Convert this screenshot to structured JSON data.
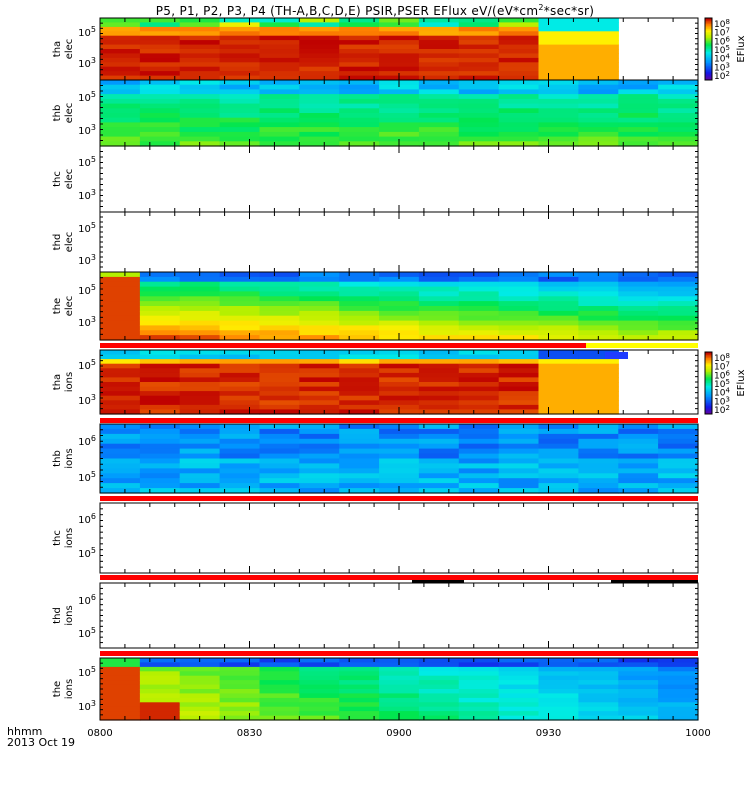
{
  "title": {
    "main": "P5, P1, P2, P3, P4 (TH-A,B,C,D,E) PSIR,PSER EFlux eV/(eV*cm",
    "sup": "2",
    "tail": "*sec*sr)"
  },
  "footer": {
    "time_label": "hhmm",
    "date_label": "2013 Oct 19"
  },
  "colors": {
    "background": "#ffffff",
    "flag_bar": "#ff0000",
    "flag_bar_alt": "#ffff00"
  },
  "chart_data": {
    "type": "heatmap",
    "x_axis": {
      "range": [
        "08:00",
        "10:00"
      ],
      "ticks": [
        "0800",
        "0830",
        "0900",
        "0930",
        "1000"
      ],
      "scale": "time (hhmm)"
    },
    "y_axis_scale": "log",
    "colorbars": [
      {
        "label": "EFlux",
        "panel": "tha_elec",
        "ticks": [
          "10^8",
          "10^7",
          "10^6",
          "10^5",
          "10^4",
          "10^3",
          "10^2"
        ],
        "scale": "log"
      },
      {
        "label": "EFlux",
        "panel": "tha_ions",
        "ticks": [
          "10^8",
          "10^7",
          "10^6",
          "10^5",
          "10^4",
          "10^3",
          "10^2"
        ],
        "scale": "log"
      }
    ],
    "panels": [
      {
        "id": "tha_elec",
        "ylabel": [
          "tha",
          "elec"
        ],
        "yticks": [
          "10^5",
          "10^3"
        ],
        "data_extent": [
          "08:00",
          "09:45"
        ],
        "description": "mostly saturated red (~10^8) below 10^4 eV, orange/yellow band at top, drop to yellow/cyan after 09:25"
      },
      {
        "id": "thb_elec",
        "ylabel": [
          "thb",
          "elec"
        ],
        "yticks": [
          "10^5",
          "10^3"
        ],
        "data_extent": [
          "08:00",
          "10:00"
        ],
        "description": "blue to green (~10^4 - 10^5) throughout"
      },
      {
        "id": "thc_elec",
        "ylabel": [
          "thc",
          "elec"
        ],
        "yticks": [
          "10^5",
          "10^3"
        ],
        "data_extent": null
      },
      {
        "id": "thd_elec",
        "ylabel": [
          "thd",
          "elec"
        ],
        "yticks": [
          "10^5",
          "10^3"
        ],
        "data_extent": null
      },
      {
        "id": "the_elec",
        "ylabel": [
          "the",
          "elec"
        ],
        "yticks": [
          "10^5",
          "10^3"
        ],
        "data_extent": [
          "08:00",
          "10:00"
        ],
        "description": "red at low energy near 08:05, fading to yellow/green; blue at high energies"
      },
      {
        "id": "tha_ions",
        "ylabel": [
          "tha",
          "ions"
        ],
        "yticks": [
          "10^5",
          "10^3"
        ],
        "data_extent": [
          "08:00",
          "09:45"
        ],
        "description": "saturated red below 10^4 eV, orange after 09:25"
      },
      {
        "id": "thb_ions",
        "ylabel": [
          "thb",
          "ions"
        ],
        "yticks": [
          "10^6",
          "10^5"
        ],
        "data_extent": [
          "08:00",
          "10:00"
        ],
        "description": "blue (~10^3 - 10^4)"
      },
      {
        "id": "thc_ions",
        "ylabel": [
          "thc",
          "ions"
        ],
        "yticks": [
          "10^6",
          "10^5"
        ],
        "data_extent": null
      },
      {
        "id": "thd_ions",
        "ylabel": [
          "thd",
          "ions"
        ],
        "yticks": [
          "10^6",
          "10^5"
        ],
        "data_extent": null
      },
      {
        "id": "the_ions",
        "ylabel": [
          "the",
          "ions"
        ],
        "yticks": [
          "10^5",
          "10^3"
        ],
        "data_extent": [
          "08:00",
          "10:00"
        ],
        "description": "red near 08:00-08:10 low energy, yellow/green, then cyan/blue"
      }
    ]
  }
}
